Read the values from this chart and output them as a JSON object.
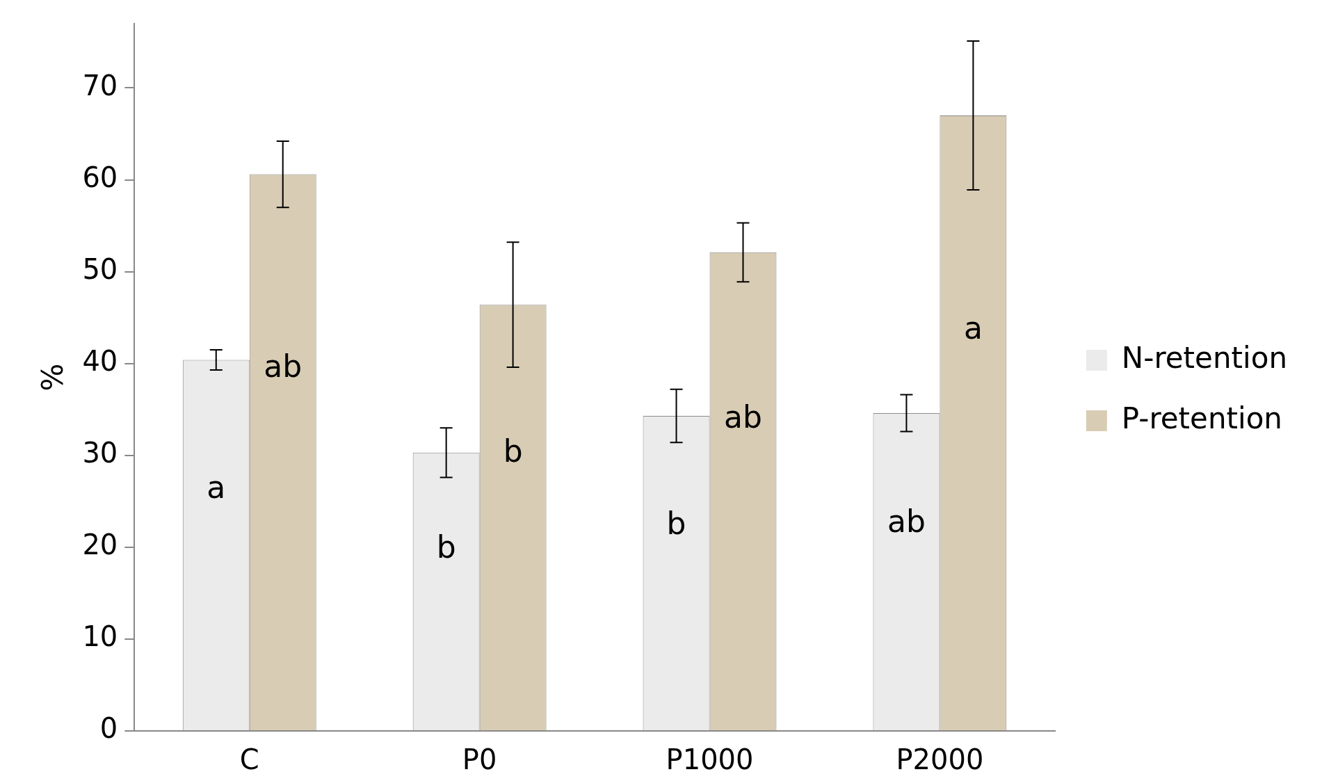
{
  "chart_data": {
    "type": "bar",
    "ylabel": "%",
    "categories": [
      "C",
      "P0",
      "P1000",
      "P2000"
    ],
    "series": [
      {
        "name": "N-retention",
        "color": "#ebebeb",
        "values": [
          40.4,
          30.3,
          34.3,
          34.6
        ],
        "errors": [
          1.1,
          2.7,
          2.9,
          2.0
        ]
      },
      {
        "name": "P-retention",
        "color": "#d8ccb4",
        "values": [
          60.6,
          46.4,
          52.1,
          67.0
        ],
        "errors": [
          3.6,
          6.8,
          3.2,
          8.1
        ]
      }
    ],
    "ylim": [
      0,
      77
    ],
    "yticks": [
      0,
      10,
      20,
      30,
      40,
      50,
      60,
      70
    ],
    "grid": false,
    "legend": "right",
    "annotations": [
      "a",
      "ab",
      "b",
      "b",
      "b",
      "ab",
      "ab",
      "a"
    ]
  }
}
